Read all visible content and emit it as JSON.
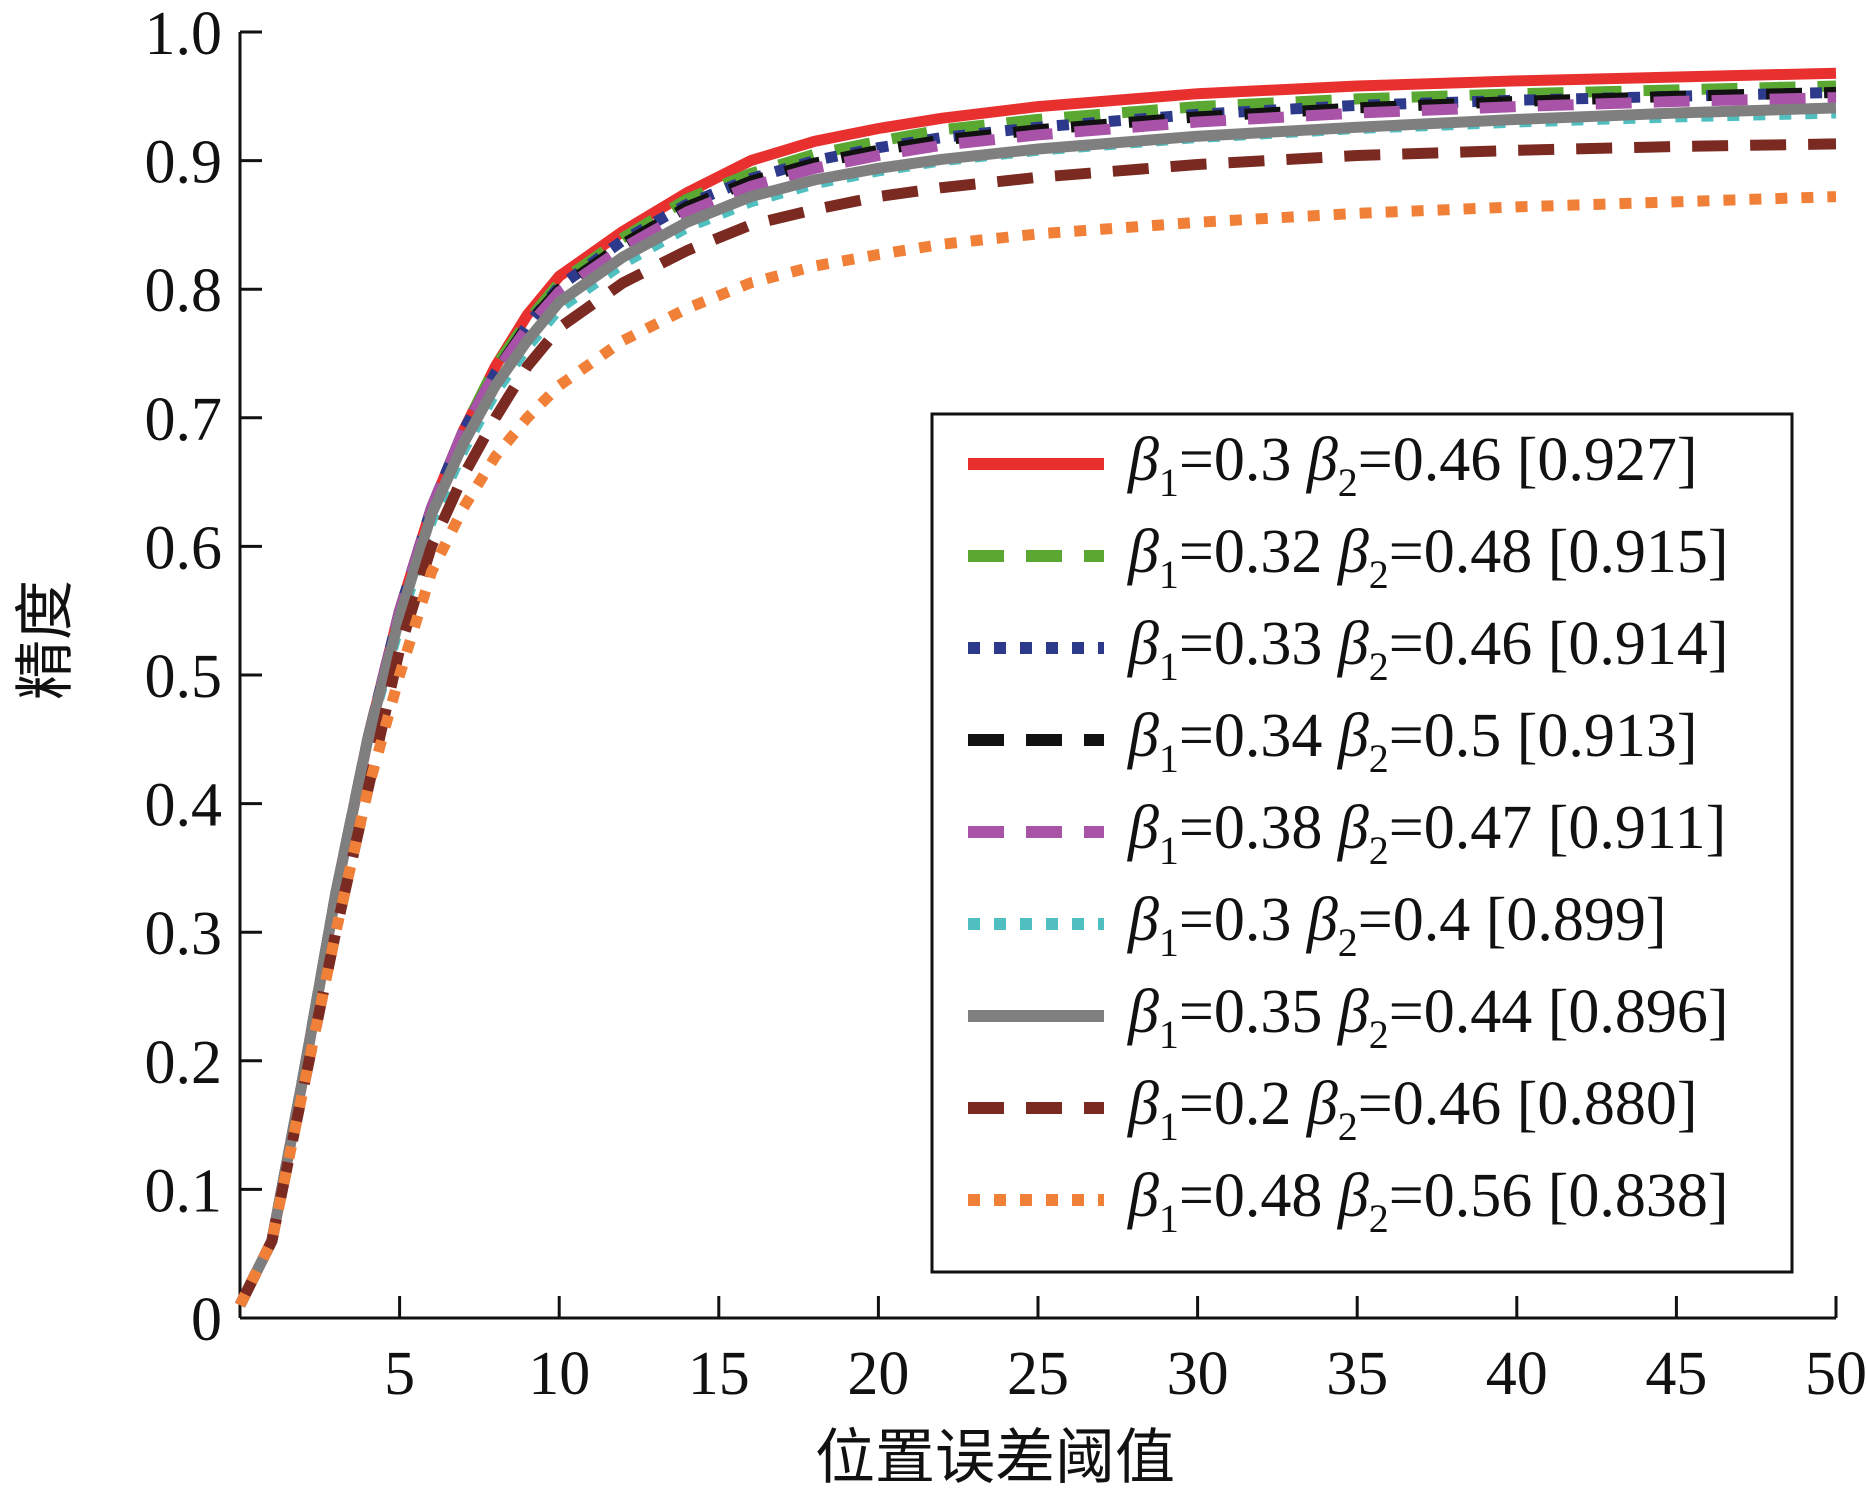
{
  "chart_data": {
    "type": "line",
    "title": "",
    "xlabel": "位置误差阈值",
    "ylabel": "精度",
    "xlim": [
      0,
      50
    ],
    "ylim": [
      0,
      1.0
    ],
    "x_ticks": [
      "5",
      "10",
      "15",
      "20",
      "25",
      "30",
      "35",
      "40",
      "45",
      "50"
    ],
    "y_ticks": [
      "0",
      "0.1",
      "0.2",
      "0.3",
      "0.4",
      "0.5",
      "0.6",
      "0.7",
      "0.8",
      "0.9",
      "1.0"
    ],
    "grid": false,
    "legend_position": "bottom-right",
    "x": [
      0,
      1,
      2,
      3,
      4,
      5,
      6,
      7,
      8,
      9,
      10,
      12,
      14,
      16,
      18,
      20,
      22,
      25,
      30,
      35,
      40,
      45,
      50
    ],
    "series": [
      {
        "name": "β1=0.3 β2=0.46 [0.927]",
        "label": {
          "b1": "0.3",
          "b2": "0.46",
          "score": "[0.927]"
        },
        "color": "#e8302f",
        "style": "solid",
        "values": [
          0.01,
          0.06,
          0.19,
          0.33,
          0.45,
          0.55,
          0.63,
          0.69,
          0.74,
          0.78,
          0.81,
          0.845,
          0.875,
          0.9,
          0.915,
          0.925,
          0.933,
          0.942,
          0.952,
          0.958,
          0.962,
          0.965,
          0.968
        ]
      },
      {
        "name": "β1=0.32 β2=0.48 [0.915]",
        "label": {
          "b1": "0.32",
          "b2": "0.48",
          "score": "[0.915]"
        },
        "color": "#5aa832",
        "style": "dashed",
        "values": [
          0.01,
          0.06,
          0.19,
          0.33,
          0.45,
          0.55,
          0.63,
          0.69,
          0.74,
          0.775,
          0.805,
          0.84,
          0.87,
          0.89,
          0.905,
          0.915,
          0.924,
          0.932,
          0.942,
          0.948,
          0.952,
          0.955,
          0.958
        ]
      },
      {
        "name": "β1=0.33 β2=0.46 [0.914]",
        "label": {
          "b1": "0.33",
          "b2": "0.46",
          "score": "[0.914]"
        },
        "color": "#2d3a8c",
        "style": "dotted",
        "values": [
          0.01,
          0.06,
          0.19,
          0.33,
          0.45,
          0.55,
          0.63,
          0.69,
          0.735,
          0.772,
          0.802,
          0.838,
          0.866,
          0.886,
          0.9,
          0.91,
          0.918,
          0.926,
          0.936,
          0.943,
          0.947,
          0.95,
          0.953
        ]
      },
      {
        "name": "β1=0.34 β2=0.5 [0.913]",
        "label": {
          "b1": "0.34",
          "b2": "0.5",
          "score": "[0.913]"
        },
        "color": "#111111",
        "style": "dashed",
        "values": [
          0.01,
          0.06,
          0.19,
          0.33,
          0.45,
          0.55,
          0.63,
          0.69,
          0.735,
          0.772,
          0.8,
          0.835,
          0.864,
          0.884,
          0.898,
          0.908,
          0.916,
          0.924,
          0.934,
          0.941,
          0.946,
          0.95,
          0.953
        ]
      },
      {
        "name": "β1=0.38 β2=0.47 [0.911]",
        "label": {
          "b1": "0.38",
          "b2": "0.47",
          "score": "[0.911]"
        },
        "color": "#a852a8",
        "style": "dashed",
        "values": [
          0.01,
          0.06,
          0.19,
          0.33,
          0.45,
          0.55,
          0.63,
          0.69,
          0.735,
          0.77,
          0.798,
          0.832,
          0.86,
          0.88,
          0.894,
          0.904,
          0.912,
          0.92,
          0.93,
          0.937,
          0.942,
          0.946,
          0.949
        ]
      },
      {
        "name": "β1=0.3 β2=0.4 [0.899]",
        "label": {
          "b1": "0.3",
          "b2": "0.4",
          "score": "[0.899]"
        },
        "color": "#4fbfbf",
        "style": "dotted",
        "values": [
          0.01,
          0.06,
          0.19,
          0.33,
          0.45,
          0.54,
          0.62,
          0.675,
          0.72,
          0.755,
          0.785,
          0.82,
          0.848,
          0.868,
          0.882,
          0.892,
          0.9,
          0.908,
          0.918,
          0.925,
          0.93,
          0.934,
          0.937
        ]
      },
      {
        "name": "β1=0.35 β2=0.44 [0.896]",
        "label": {
          "b1": "0.35",
          "b2": "0.44",
          "score": "[0.896]"
        },
        "color": "#7f7f7f",
        "style": "solid",
        "values": [
          0.01,
          0.06,
          0.19,
          0.33,
          0.45,
          0.545,
          0.625,
          0.68,
          0.725,
          0.76,
          0.79,
          0.825,
          0.852,
          0.872,
          0.885,
          0.894,
          0.901,
          0.909,
          0.919,
          0.926,
          0.932,
          0.937,
          0.941
        ]
      },
      {
        "name": "β1=0.2 β2=0.46 [0.880]",
        "label": {
          "b1": "0.2",
          "b2": "0.46",
          "score": "[0.880]"
        },
        "color": "#7b2a22",
        "style": "dashed",
        "values": [
          0.01,
          0.06,
          0.18,
          0.3,
          0.41,
          0.52,
          0.6,
          0.655,
          0.7,
          0.74,
          0.77,
          0.805,
          0.83,
          0.85,
          0.862,
          0.872,
          0.879,
          0.887,
          0.897,
          0.904,
          0.908,
          0.911,
          0.913
        ]
      },
      {
        "name": "β1=0.48 β2=0.56 [0.838]",
        "label": {
          "b1": "0.48",
          "b2": "0.56",
          "score": "[0.838]"
        },
        "color": "#f08038",
        "style": "dotted",
        "values": [
          0.01,
          0.06,
          0.18,
          0.3,
          0.41,
          0.5,
          0.58,
          0.63,
          0.67,
          0.7,
          0.725,
          0.76,
          0.785,
          0.805,
          0.818,
          0.827,
          0.835,
          0.843,
          0.852,
          0.859,
          0.864,
          0.868,
          0.872
        ]
      }
    ]
  }
}
